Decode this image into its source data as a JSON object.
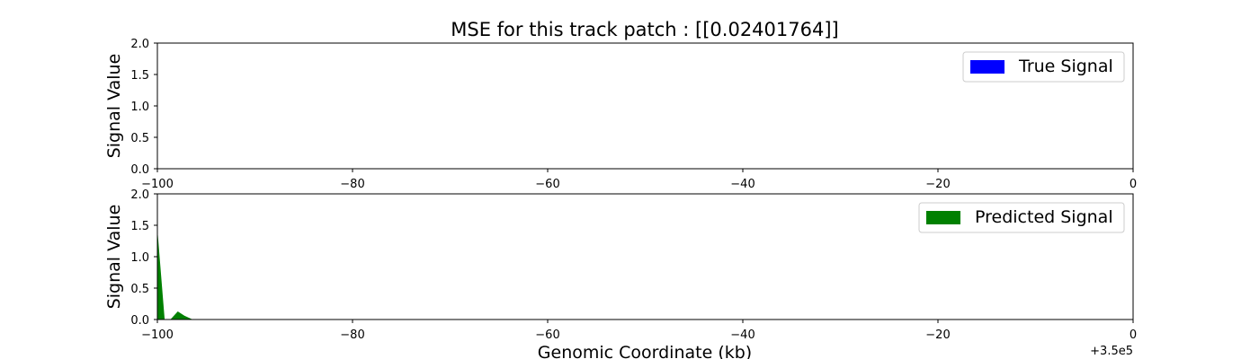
{
  "chart_data": [
    {
      "type": "area",
      "title": "MSE for this track patch : [[0.02401764]]",
      "xlabel": "",
      "ylabel": "Signal Value",
      "xlim": [
        -100,
        0
      ],
      "ylim": [
        0,
        2.0
      ],
      "xticks": [
        -100,
        -80,
        -60,
        -40,
        -20,
        0
      ],
      "xtick_labels": [
        "−100",
        "−80",
        "−60",
        "−40",
        "−20",
        "0"
      ],
      "yticks": [
        0.0,
        0.5,
        1.0,
        1.5,
        2.0
      ],
      "ytick_labels": [
        "0.0",
        "0.5",
        "1.0",
        "1.5",
        "2.0"
      ],
      "legend_position": "upper right",
      "series": [
        {
          "name": "True Signal",
          "color": "#0000ff",
          "x": [
            -100,
            0
          ],
          "y": [
            0,
            0
          ]
        }
      ]
    },
    {
      "type": "area",
      "title": "",
      "xlabel": "Genomic Coordinate (kb)",
      "ylabel": "Signal Value",
      "xlim": [
        -100,
        0
      ],
      "ylim": [
        0,
        2.0
      ],
      "xticks": [
        -100,
        -80,
        -60,
        -40,
        -20,
        0
      ],
      "xtick_labels": [
        "−100",
        "−80",
        "−60",
        "−40",
        "−20",
        "0"
      ],
      "yticks": [
        0.0,
        0.5,
        1.0,
        1.5,
        2.0
      ],
      "ytick_labels": [
        "0.0",
        "0.5",
        "1.0",
        "1.5",
        "2.0"
      ],
      "offset_text": "+3.5e5",
      "legend_position": "upper right",
      "series": [
        {
          "name": "Predicted Signal",
          "color": "#008000",
          "x": [
            -100,
            -99.3,
            -98.6,
            -97.9,
            -97.2,
            -96.5,
            0
          ],
          "y": [
            1.35,
            0,
            0,
            0.12,
            0.05,
            0,
            0
          ]
        }
      ]
    }
  ]
}
